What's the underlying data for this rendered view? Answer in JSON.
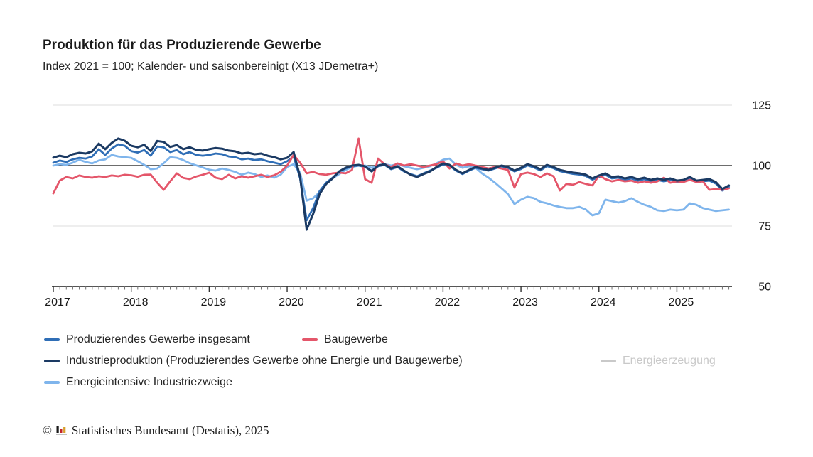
{
  "header": {
    "title": "Produktion für das Produzierende Gewerbe",
    "subtitle": "Index 2021 = 100; Kalender- und saisonbereinigt (X13 JDemetra+)"
  },
  "footer": {
    "copyright": "©",
    "logo": "destatis-bars-logo",
    "logo_colors": [
      "#1a1a1a",
      "#c2252b",
      "#d79f2b",
      "#9a9a9a"
    ],
    "source": "Statistisches Bundesamt (Destatis), 2025"
  },
  "chart_data": {
    "type": "line",
    "title": "Produktion für das Produzierende Gewerbe",
    "subtitle": "Index 2021 = 100; Kalender- und saisonbereinigt (X13 JDemetra+)",
    "x_axis": {
      "unit": "month",
      "start": "2017-01",
      "end": "2025-09",
      "tick_labels": [
        "2017",
        "2018",
        "2019",
        "2020",
        "2021",
        "2022",
        "2023",
        "2024",
        "2025"
      ],
      "minor_ticks": "monthly"
    },
    "y_axis": {
      "ticks": [
        50,
        75,
        100,
        125
      ],
      "range": [
        50,
        128
      ],
      "reference_line": 100,
      "label_side": "right"
    },
    "grid": "horizontal-only",
    "legend_position": "bottom",
    "colors": {
      "gridline": "#dcdcdc",
      "axis": "#3d3d3d",
      "reference_line": "#3d3d3d"
    },
    "series": [
      {
        "name": "Produzierendes Gewerbe insgesamt",
        "color": "#2f6eb6",
        "visible": true,
        "z": 2,
        "width": 2.8,
        "values": [
          101.2,
          102.1,
          101.5,
          102.6,
          103.2,
          102.9,
          103.8,
          106.8,
          104.4,
          107.1,
          108.8,
          108.2,
          106.0,
          105.4,
          106.4,
          104.1,
          107.9,
          107.6,
          105.6,
          106.4,
          104.7,
          105.6,
          104.4,
          104.1,
          104.4,
          105.0,
          104.7,
          103.8,
          103.5,
          102.6,
          102.9,
          102.3,
          102.6,
          101.8,
          101.2,
          100.6,
          101.8,
          103.8,
          94.7,
          77.4,
          82.4,
          89.4,
          92.9,
          95.0,
          97.6,
          98.8,
          99.7,
          100.0,
          99.4,
          97.9,
          99.7,
          100.3,
          98.5,
          99.4,
          97.6,
          96.5,
          95.6,
          96.8,
          97.9,
          99.1,
          100.5,
          100.0,
          97.9,
          96.5,
          97.9,
          99.1,
          98.5,
          97.9,
          98.8,
          99.7,
          99.1,
          97.6,
          98.6,
          100.1,
          99.2,
          98.0,
          99.8,
          98.9,
          97.7,
          97.1,
          96.6,
          96.3,
          95.7,
          94.2,
          95.3,
          96.2,
          94.7,
          95.0,
          94.1,
          94.7,
          93.8,
          94.4,
          93.5,
          94.1,
          93.5,
          94.1,
          93.2,
          93.5,
          94.7,
          93.2,
          93.5,
          93.8,
          92.6,
          89.7,
          91.2
        ]
      },
      {
        "name": "Baugewerbe",
        "color": "#e4566a",
        "visible": true,
        "z": 3,
        "width": 2.8,
        "values": [
          88.5,
          93.8,
          95.3,
          94.7,
          95.9,
          95.3,
          95.0,
          95.6,
          95.3,
          95.9,
          95.6,
          96.2,
          96.0,
          95.4,
          96.2,
          96.3,
          92.9,
          90.0,
          93.5,
          96.8,
          94.9,
          94.4,
          95.5,
          96.2,
          97.1,
          95.0,
          94.4,
          96.2,
          94.7,
          95.6,
          95.0,
          95.6,
          96.2,
          95.3,
          96.0,
          97.4,
          100.0,
          104.4,
          101.2,
          96.8,
          97.4,
          96.5,
          96.2,
          96.8,
          97.1,
          96.8,
          98.2,
          111.2,
          94.4,
          92.9,
          102.9,
          100.6,
          99.4,
          100.9,
          100.0,
          100.6,
          100.0,
          99.4,
          100.0,
          100.6,
          101.8,
          98.8,
          100.9,
          100.0,
          100.6,
          100.0,
          99.4,
          98.8,
          99.4,
          98.8,
          98.2,
          90.9,
          96.5,
          97.1,
          96.5,
          95.3,
          96.8,
          95.6,
          89.7,
          92.4,
          92.1,
          93.2,
          92.4,
          91.8,
          95.9,
          94.4,
          93.5,
          94.1,
          93.5,
          93.8,
          92.9,
          93.5,
          92.9,
          93.5,
          95.0,
          92.9,
          93.5,
          93.2,
          94.1,
          93.2,
          93.5,
          90.0,
          90.3,
          90.0,
          90.6
        ]
      },
      {
        "name": "Industrieproduktion (Produzierendes Gewerbe ohne Energie und Baugewerbe)",
        "color": "#1b3a63",
        "visible": true,
        "z": 4,
        "width": 3,
        "values": [
          103.3,
          104.1,
          103.5,
          104.7,
          105.3,
          105.0,
          105.9,
          109.1,
          106.8,
          109.4,
          111.2,
          110.3,
          108.2,
          107.6,
          108.6,
          106.0,
          110.2,
          109.8,
          107.7,
          108.5,
          106.8,
          107.6,
          106.5,
          106.2,
          106.8,
          107.3,
          107.0,
          106.2,
          105.9,
          105.0,
          105.3,
          104.7,
          105.0,
          104.1,
          103.5,
          102.6,
          103.2,
          105.6,
          95.3,
          73.5,
          80.0,
          88.2,
          92.4,
          94.7,
          97.6,
          99.1,
          100.0,
          100.3,
          99.7,
          97.6,
          100.0,
          100.6,
          98.8,
          99.7,
          97.9,
          96.2,
          95.3,
          96.5,
          97.6,
          99.4,
          100.9,
          100.3,
          98.2,
          96.8,
          98.2,
          99.4,
          98.8,
          98.2,
          99.1,
          100.0,
          99.4,
          97.9,
          99.1,
          100.6,
          99.7,
          98.5,
          100.3,
          99.4,
          98.2,
          97.6,
          97.1,
          96.8,
          96.2,
          94.7,
          95.9,
          96.8,
          95.3,
          95.6,
          94.7,
          95.3,
          94.4,
          95.0,
          94.1,
          94.7,
          94.1,
          94.7,
          93.8,
          94.1,
          95.3,
          93.8,
          94.1,
          94.4,
          93.2,
          90.3,
          91.8
        ]
      },
      {
        "name": "Energieerzeugung",
        "color": "#c9c9c9",
        "visible": false,
        "z": 0,
        "width": 2.8,
        "values": []
      },
      {
        "name": "Energieintensive Industriezweige",
        "color": "#7fb5ec",
        "visible": true,
        "z": 1,
        "width": 2.8,
        "values": [
          100.0,
          100.6,
          100.3,
          101.2,
          102.4,
          101.5,
          100.9,
          102.1,
          102.6,
          104.4,
          103.8,
          103.5,
          103.2,
          101.8,
          100.3,
          98.5,
          98.8,
          101.0,
          103.5,
          103.2,
          102.3,
          101.0,
          100.1,
          99.2,
          98.3,
          97.9,
          98.8,
          98.2,
          97.4,
          96.2,
          97.1,
          96.5,
          95.3,
          95.9,
          95.0,
          96.2,
          99.4,
          100.6,
          97.0,
          85.5,
          86.5,
          89.0,
          92.4,
          94.7,
          96.5,
          98.2,
          99.4,
          100.0,
          100.0,
          99.1,
          100.0,
          100.6,
          100.0,
          100.6,
          99.7,
          99.1,
          98.5,
          99.1,
          99.7,
          100.9,
          102.4,
          102.9,
          100.3,
          99.1,
          99.7,
          99.1,
          96.8,
          95.0,
          92.9,
          90.6,
          88.2,
          84.1,
          85.9,
          87.1,
          86.5,
          85.0,
          84.4,
          83.5,
          82.9,
          82.4,
          82.4,
          82.9,
          81.8,
          79.4,
          80.3,
          85.9,
          85.3,
          84.7,
          85.3,
          86.5,
          85.0,
          83.8,
          82.9,
          81.5,
          81.2,
          81.8,
          81.5,
          81.8,
          84.4,
          83.8,
          82.4,
          81.8,
          81.2,
          81.5,
          81.8
        ]
      }
    ]
  }
}
